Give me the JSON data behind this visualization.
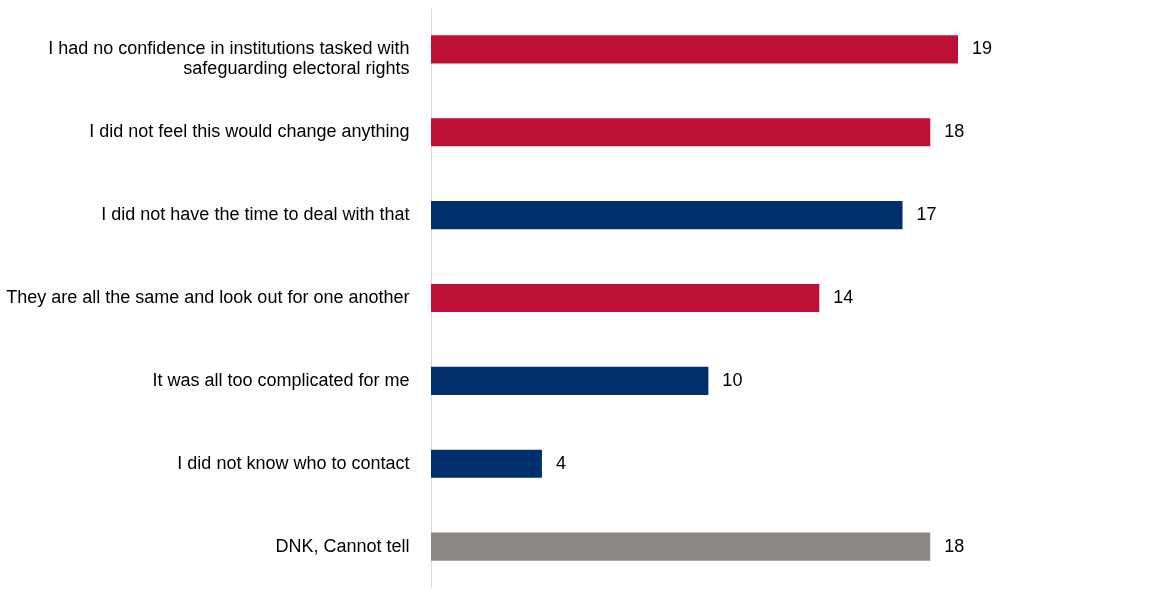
{
  "chart_data": {
    "type": "bar",
    "orientation": "horizontal",
    "data_labels": true,
    "grid": false,
    "categories": [
      "I had no confidence in institutions tasked with safeguarding electoral rights",
      "I did not feel this would change anything",
      "I did not have the time to deal with that",
      "They are all the same and look out for one another",
      "It was all too complicated for me",
      "I did not know who to contact",
      "DNK, Cannot tell"
    ],
    "values": [
      19,
      18,
      17,
      14,
      10,
      4,
      18
    ],
    "colors": [
      "#be0f34",
      "#be0f34",
      "#00306b",
      "#be0f34",
      "#00306b",
      "#00306b",
      "#8c8985"
    ]
  }
}
